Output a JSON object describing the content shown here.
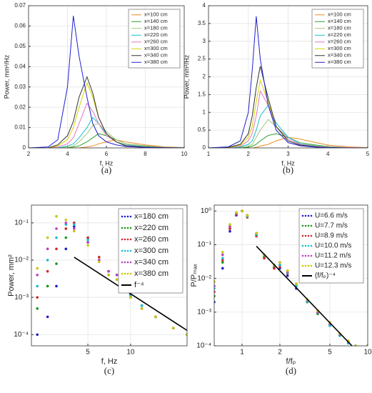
{
  "chart_data": [
    {
      "type": "line",
      "caption": "(a)",
      "x_label": "f, Hz",
      "y_label": "Power, mm²/Hz",
      "x": [
        2,
        3,
        3.5,
        4,
        4.3,
        4.6,
        5,
        5.3,
        5.6,
        6,
        6.5,
        7,
        8,
        9,
        10
      ],
      "xlim": [
        2,
        10
      ],
      "xticks": [
        2,
        4,
        6,
        8,
        10
      ],
      "ylim": [
        0,
        0.07
      ],
      "yticks": [
        0,
        0.01,
        0.02,
        0.03,
        0.04,
        0.05,
        0.06,
        0.07
      ],
      "grid": true,
      "legend": "upper-right",
      "series": [
        {
          "name": "x=100 cm",
          "color": "#f08a24",
          "values": [
            0,
            0,
            0,
            0,
            0,
            0,
            0.0005,
            0.001,
            0.002,
            0.003,
            0.004,
            0.003,
            0.0015,
            0.0005,
            0.0002
          ]
        },
        {
          "name": "x=140 cm",
          "color": "#2ca02c",
          "values": [
            0,
            0,
            0,
            0,
            0.0005,
            0.001,
            0.003,
            0.005,
            0.007,
            0.006,
            0.004,
            0.002,
            0.001,
            0.0003,
            0.0001
          ]
        },
        {
          "name": "x=180 cm",
          "color": "#a0c878",
          "values": [
            0,
            0,
            0,
            0.0005,
            0.001,
            0.003,
            0.007,
            0.011,
            0.012,
            0.008,
            0.004,
            0.002,
            0.0008,
            0.0003,
            0.0001
          ]
        },
        {
          "name": "x=220 cm",
          "color": "#17becf",
          "values": [
            0,
            0,
            0,
            0.001,
            0.002,
            0.005,
            0.01,
            0.015,
            0.012,
            0.007,
            0.003,
            0.0015,
            0.0006,
            0.0002,
            0.0001
          ]
        },
        {
          "name": "x=260 cm",
          "color": "#e377c2",
          "values": [
            0,
            0,
            0.0005,
            0.002,
            0.005,
            0.012,
            0.022,
            0.018,
            0.012,
            0.006,
            0.003,
            0.0012,
            0.0005,
            0.0002,
            0
          ]
        },
        {
          "name": "x=300 cm",
          "color": "#d4d400",
          "values": [
            0,
            0,
            0.001,
            0.004,
            0.01,
            0.02,
            0.032,
            0.025,
            0.015,
            0.007,
            0.003,
            0.001,
            0.0004,
            0.0001,
            0
          ]
        },
        {
          "name": "x=340 cm",
          "color": "#333333",
          "values": [
            0,
            0,
            0.0015,
            0.006,
            0.013,
            0.025,
            0.035,
            0.027,
            0.015,
            0.007,
            0.003,
            0.001,
            0.0004,
            0.0001,
            0
          ]
        },
        {
          "name": "x=380 cm",
          "color": "#1f1fd0",
          "values": [
            0,
            0.0005,
            0.004,
            0.03,
            0.065,
            0.045,
            0.025,
            0.012,
            0.006,
            0.003,
            0.0015,
            0.0007,
            0.0002,
            0.0001,
            0
          ]
        }
      ]
    },
    {
      "type": "line",
      "caption": "(b)",
      "x_label": "f, Hz",
      "y_label": "Power, mm²/Hz",
      "x": [
        1,
        1.5,
        1.8,
        2,
        2.1,
        2.2,
        2.3,
        2.5,
        2.7,
        3,
        3.3,
        3.7,
        4,
        4.5,
        5
      ],
      "xlim": [
        1,
        5
      ],
      "xticks": [
        1,
        2,
        3,
        4,
        5
      ],
      "ylim": [
        0,
        4
      ],
      "yticks": [
        0,
        0.5,
        1,
        1.5,
        2,
        2.5,
        3,
        3.5,
        4
      ],
      "grid": true,
      "legend": "upper-right",
      "series": [
        {
          "name": "x=100 cm",
          "color": "#f08a24",
          "values": [
            0,
            0,
            0,
            0,
            0,
            0.02,
            0.05,
            0.1,
            0.2,
            0.3,
            0.25,
            0.15,
            0.08,
            0.03,
            0.01
          ]
        },
        {
          "name": "x=140 cm",
          "color": "#2ca02c",
          "values": [
            0,
            0,
            0,
            0.02,
            0.05,
            0.1,
            0.2,
            0.35,
            0.4,
            0.3,
            0.15,
            0.08,
            0.04,
            0.01,
            0
          ]
        },
        {
          "name": "x=180 cm",
          "color": "#a0c878",
          "values": [
            0,
            0,
            0.02,
            0.05,
            0.1,
            0.3,
            0.5,
            0.8,
            0.6,
            0.3,
            0.15,
            0.06,
            0.03,
            0.01,
            0
          ]
        },
        {
          "name": "x=220 cm",
          "color": "#17becf",
          "values": [
            0,
            0,
            0.03,
            0.1,
            0.2,
            0.5,
            0.9,
            1.2,
            0.7,
            0.3,
            0.12,
            0.05,
            0.02,
            0.01,
            0
          ]
        },
        {
          "name": "x=260 cm",
          "color": "#e377c2",
          "values": [
            0,
            0.01,
            0.05,
            0.2,
            0.4,
            0.9,
            1.6,
            1.2,
            0.6,
            0.25,
            0.1,
            0.04,
            0.02,
            0.01,
            0
          ]
        },
        {
          "name": "x=300 cm",
          "color": "#d4d400",
          "values": [
            0,
            0.01,
            0.08,
            0.3,
            0.6,
            1.3,
            1.9,
            1.3,
            0.6,
            0.2,
            0.08,
            0.03,
            0.01,
            0,
            0
          ]
        },
        {
          "name": "x=340 cm",
          "color": "#333333",
          "values": [
            0,
            0.02,
            0.1,
            0.4,
            0.9,
            1.7,
            2.3,
            1.4,
            0.6,
            0.2,
            0.08,
            0.03,
            0.01,
            0,
            0
          ]
        },
        {
          "name": "x=380 cm",
          "color": "#1f1fd0",
          "values": [
            0,
            0.03,
            0.2,
            1.0,
            2.2,
            3.7,
            2.5,
            1.2,
            0.5,
            0.15,
            0.06,
            0.02,
            0.01,
            0,
            0
          ]
        }
      ]
    },
    {
      "type": "scatter",
      "caption": "(c)",
      "x_label": "f, Hz",
      "y_label": "Power, mm²",
      "x": [
        2.2,
        2.6,
        3,
        3.5,
        4,
        5,
        6,
        7,
        8,
        9,
        10,
        12,
        15,
        20,
        25
      ],
      "xscale": "log",
      "yscale": "log",
      "xlim": [
        2,
        25
      ],
      "xticks": [
        5,
        10
      ],
      "ylim": [
        5e-05,
        0.3
      ],
      "yticks": [
        {
          "value": 0.0001,
          "label": "10⁻⁴"
        },
        {
          "value": 0.001,
          "label": "10⁻³"
        },
        {
          "value": 0.01,
          "label": "10⁻²"
        },
        {
          "value": 0.1,
          "label": "10⁻¹"
        }
      ],
      "grid": true,
      "legend": "upper-right",
      "series": [
        {
          "name": "x=180 cm",
          "color": "#1f1fd0",
          "marker": true,
          "values": [
            0.0001,
            0.0003,
            0.002,
            0.02,
            0.08,
            0.03,
            0.01,
            0.004,
            0.003,
            0.0015,
            0.001,
            0.0005,
            0.0003,
            0.00015,
            0.0001
          ]
        },
        {
          "name": "x=220 cm",
          "color": "#1a9a1a",
          "marker": true,
          "values": [
            0.0005,
            0.002,
            0.008,
            0.04,
            0.1,
            0.04,
            0.012,
            0.005,
            0.004,
            0.002,
            0.0012,
            0.0006,
            0.0003,
            0.00015,
            0.0001
          ]
        },
        {
          "name": "x=260 cm",
          "color": "#d62728",
          "marker": true,
          "values": [
            0.001,
            0.005,
            0.02,
            0.07,
            0.1,
            0.04,
            0.012,
            0.005,
            0.004,
            0.002,
            0.0012,
            0.0006,
            0.0003,
            0.00015,
            0.0001
          ]
        },
        {
          "name": "x=300 cm",
          "color": "#17becf",
          "marker": true,
          "values": [
            0.002,
            0.01,
            0.04,
            0.09,
            0.09,
            0.035,
            0.01,
            0.005,
            0.004,
            0.002,
            0.0011,
            0.0006,
            0.0003,
            0.00015,
            0.0001
          ]
        },
        {
          "name": "x=340 cm",
          "color": "#c040c0",
          "marker": true,
          "values": [
            0.004,
            0.02,
            0.07,
            0.1,
            0.07,
            0.03,
            0.01,
            0.005,
            0.004,
            0.002,
            0.001,
            0.0005,
            0.0003,
            0.00015,
            0.0001
          ]
        },
        {
          "name": "x=380 cm",
          "color": "#c8c800",
          "marker": true,
          "values": [
            0.006,
            0.04,
            0.15,
            0.12,
            0.06,
            0.025,
            0.009,
            0.004,
            0.003,
            0.0015,
            0.001,
            0.0005,
            0.0003,
            0.00015,
            0.0001
          ]
        },
        {
          "name": "f⁻⁴",
          "color": "#000000",
          "x": [
            4,
            25
          ],
          "values": [
            0.012,
            0.00013
          ]
        }
      ]
    },
    {
      "type": "scatter",
      "caption": "(d)",
      "x_label": "f/fₚ",
      "y_label": "P/Pₘₐₓ",
      "x": [
        0.6,
        0.7,
        0.8,
        0.9,
        1,
        1.1,
        1.3,
        1.5,
        1.8,
        2,
        2.3,
        2.7,
        3.3,
        4,
        5,
        6,
        7,
        8,
        10
      ],
      "xscale": "log",
      "yscale": "log",
      "xlim": [
        0.6,
        10
      ],
      "xticks": [
        1,
        2,
        5,
        10
      ],
      "ylim": [
        0.0001,
        1.5
      ],
      "yticks": [
        {
          "value": 0.0001,
          "label": "10⁻⁴"
        },
        {
          "value": 0.001,
          "label": "10⁻³"
        },
        {
          "value": 0.01,
          "label": "10⁻²"
        },
        {
          "value": 0.1,
          "label": "10⁻¹"
        },
        {
          "value": 1,
          "label": "10⁰"
        }
      ],
      "grid": true,
      "legend": "upper-right",
      "series": [
        {
          "name": "U=6.6 m/s",
          "color": "#1f1fd0",
          "marker": true,
          "values": [
            0.002,
            0.02,
            0.25,
            0.75,
            1,
            0.7,
            0.2,
            0.04,
            0.02,
            0.02,
            0.012,
            0.005,
            0.002,
            0.0009,
            0.0004,
            0.0002,
            0.00013,
            0.0001,
            0.0001
          ]
        },
        {
          "name": "U=7.7 m/s",
          "color": "#1a9a1a",
          "marker": true,
          "values": [
            0.003,
            0.03,
            0.3,
            0.8,
            1,
            0.7,
            0.2,
            0.045,
            0.022,
            0.025,
            0.015,
            0.006,
            0.002,
            0.0009,
            0.0004,
            0.0002,
            0.00012,
            0.0001,
            0.0001
          ]
        },
        {
          "name": "U=8.9 m/s",
          "color": "#d62728",
          "marker": true,
          "values": [
            0.004,
            0.035,
            0.3,
            0.8,
            1,
            0.65,
            0.18,
            0.04,
            0.02,
            0.022,
            0.014,
            0.006,
            0.0022,
            0.001,
            0.00045,
            0.00022,
            0.00013,
            0.0001,
            0.0001
          ]
        },
        {
          "name": "U=10.0 m/s",
          "color": "#17becf",
          "marker": true,
          "values": [
            0.005,
            0.04,
            0.35,
            0.85,
            1,
            0.7,
            0.2,
            0.05,
            0.025,
            0.025,
            0.015,
            0.006,
            0.0021,
            0.001,
            0.0004,
            0.0002,
            0.00012,
            0.0001,
            0.0001
          ]
        },
        {
          "name": "U=11.2 m/s",
          "color": "#c040c0",
          "marker": true,
          "values": [
            0.006,
            0.05,
            0.35,
            0.85,
            1,
            0.75,
            0.22,
            0.05,
            0.025,
            0.03,
            0.016,
            0.007,
            0.0023,
            0.001,
            0.00045,
            0.00022,
            0.00013,
            0.0001,
            0.0001
          ]
        },
        {
          "name": "U=12.3 m/s",
          "color": "#c8c800",
          "marker": true,
          "values": [
            0.008,
            0.06,
            0.4,
            0.9,
            1,
            0.75,
            0.22,
            0.05,
            0.025,
            0.03,
            0.017,
            0.007,
            0.0024,
            0.0011,
            0.0005,
            0.00023,
            0.00014,
            0.0001,
            0.0001
          ]
        },
        {
          "name": "(f/fₚ)⁻⁴",
          "color": "#000000",
          "x": [
            1.3,
            7.5
          ],
          "values": [
            0.09,
            0.0001
          ]
        }
      ]
    }
  ]
}
